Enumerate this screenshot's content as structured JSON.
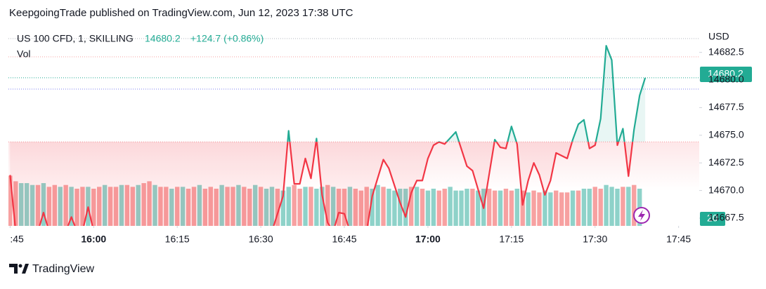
{
  "header": "KeepgoingTrade published on TradingView.com, Jun 12, 2023 17:38 UTC",
  "footer": "TradingView",
  "chart_data": {
    "type": "line",
    "symbol": "US 100 CFD, 1, SKILLING",
    "price": "14680.2",
    "change": "+124.7 (+0.86%)",
    "currency": "USD",
    "baseline": 14674.4,
    "up_color": "#22ab94",
    "down_color": "#f23645",
    "x": [
      945,
      946,
      950,
      951,
      952,
      955,
      956,
      957,
      958,
      959,
      960,
      992,
      994,
      995,
      996,
      997,
      998,
      999,
      1000,
      1001,
      1002,
      1003,
      1004,
      1005,
      1006,
      1009,
      1010,
      1012,
      1013,
      1015,
      1016,
      1017,
      1018,
      1019,
      1020,
      1021,
      1022,
      1023,
      1025,
      1027,
      1028,
      1029,
      1030,
      1032,
      1033,
      1034,
      1035,
      1036,
      1037,
      1038,
      1039,
      1040,
      1041,
      1042,
      1043,
      1045,
      1046,
      1047,
      1048,
      1049,
      1050,
      1051,
      1052,
      1053,
      1054,
      1055,
      1056,
      1057,
      1058,
      1059
    ],
    "values": [
      14671.4,
      14666.3,
      14666.3,
      14668.0,
      14666.3,
      14666.3,
      14667.6,
      14666.3,
      14666.3,
      14668.5,
      14666.3,
      14666.3,
      14669.5,
      14675.4,
      14670.6,
      14670.6,
      14672.9,
      14671.1,
      14674.7,
      14669.6,
      14667.1,
      14666.3,
      14668.0,
      14667.9,
      14666.3,
      14666.3,
      14669.5,
      14672.8,
      14672.0,
      14668.9,
      14667.6,
      14669.8,
      14670.9,
      14670.9,
      14672.9,
      14674.1,
      14674.4,
      14674.2,
      14675.3,
      14672.2,
      14671.8,
      14670.1,
      14668.4,
      14674.6,
      14673.9,
      14673.8,
      14675.8,
      14674.2,
      14668.7,
      14670.9,
      14672.5,
      14671.4,
      14669.6,
      14670.9,
      14673.4,
      14672.9,
      14674.6,
      14676.0,
      14676.4,
      14673.8,
      14674.1,
      14676.5,
      14683.1,
      14681.8,
      14674.1,
      14675.6,
      14671.3,
      14675.5,
      14678.6,
      14680.2
    ],
    "xlim": [
      944.7,
      1068.7
    ],
    "ylim": [
      14666.8,
      14684.7
    ],
    "xticks": [
      {
        "value": 945,
        "label": ":45"
      },
      {
        "value": 960,
        "label": "16:00"
      },
      {
        "value": 975,
        "label": "16:15"
      },
      {
        "value": 990,
        "label": "16:30"
      },
      {
        "value": 1005,
        "label": "16:45"
      },
      {
        "value": 1020,
        "label": "17:00"
      },
      {
        "value": 1035,
        "label": "17:15"
      },
      {
        "value": 1050,
        "label": "17:30"
      },
      {
        "value": 1065,
        "label": "17:45"
      }
    ],
    "yticks": [
      {
        "value": 14667.5,
        "label": "14667.5"
      },
      {
        "value": 14670,
        "label": "14670.0"
      },
      {
        "value": 14672.5,
        "label": "14672.5"
      },
      {
        "value": 14675,
        "label": "14675.0"
      },
      {
        "value": 14677.5,
        "label": "14677.5"
      },
      {
        "value": 14680,
        "label": "14680.0"
      },
      {
        "value": 14682.5,
        "label": "14682.5"
      }
    ],
    "volume": {
      "name": "Vol",
      "start": 945,
      "values": [
        27,
        24,
        23,
        23,
        22,
        22,
        23,
        21,
        22,
        21,
        22,
        21,
        20,
        21,
        21,
        20,
        21,
        22,
        21,
        21,
        22,
        22,
        21,
        22,
        23,
        24,
        22,
        21,
        21,
        20,
        21,
        21,
        20,
        21,
        22,
        20,
        21,
        20,
        22,
        21,
        21,
        22,
        21,
        20,
        22,
        21,
        20,
        21,
        20,
        19,
        21,
        22,
        20,
        21,
        21,
        20,
        21,
        22,
        21,
        20,
        20,
        21,
        20,
        19,
        21,
        20,
        22,
        21,
        20,
        19,
        20,
        20,
        21,
        21,
        20,
        19,
        20,
        19,
        20,
        21,
        19,
        19,
        20,
        20,
        19,
        20,
        20,
        19,
        19,
        20,
        19,
        20,
        19,
        18,
        19,
        18,
        19,
        18,
        19,
        18,
        18,
        19,
        19,
        20,
        20,
        21,
        20,
        22,
        21,
        20,
        21,
        21,
        22,
        20
      ],
      "colors": [
        "#f7a1a1",
        "#f7a1a1",
        "#8ed2c9",
        "#8ed2c9",
        "#8ed2c9",
        "#f7a1a1",
        "#8ed2c9",
        "#f7a1a1",
        "#f7a1a1",
        "#8ed2c9",
        "#f7a1a1",
        "#8ed2c9",
        "#f7a1a1",
        "#f7a1a1",
        "#8ed2c9",
        "#f7a1a1",
        "#f7a1a1",
        "#8ed2c9",
        "#f7a1a1",
        "#f7a1a1",
        "#8ed2c9",
        "#f7a1a1",
        "#f7a1a1",
        "#8ed2c9",
        "#f7a1a1",
        "#f7a1a1",
        "#8ed2c9",
        "#f7a1a1",
        "#f7a1a1",
        "#8ed2c9",
        "#f7a1a1",
        "#8ed2c9",
        "#f7a1a1",
        "#f7a1a1",
        "#8ed2c9",
        "#f7a1a1",
        "#f7a1a1",
        "#f7a1a1",
        "#8ed2c9",
        "#f7a1a1",
        "#f7a1a1",
        "#8ed2c9",
        "#f7a1a1",
        "#f7a1a1",
        "#8ed2c9",
        "#f7a1a1",
        "#8ed2c9",
        "#8ed2c9",
        "#f7a1a1",
        "#8ed2c9",
        "#8ed2c9",
        "#f7a1a1",
        "#f7a1a1",
        "#8ed2c9",
        "#f7a1a1",
        "#8ed2c9",
        "#8ed2c9",
        "#f7a1a1",
        "#8ed2c9",
        "#f7a1a1",
        "#f7a1a1",
        "#8ed2c9",
        "#f7a1a1",
        "#f7a1a1",
        "#f7a1a1",
        "#8ed2c9",
        "#8ed2c9",
        "#f7a1a1",
        "#8ed2c9",
        "#8ed2c9",
        "#8ed2c9",
        "#8ed2c9",
        "#f7a1a1",
        "#8ed2c9",
        "#f7a1a1",
        "#8ed2c9",
        "#8ed2c9",
        "#f7a1a1",
        "#f7a1a1",
        "#8ed2c9",
        "#8ed2c9",
        "#8ed2c9",
        "#8ed2c9",
        "#f7a1a1",
        "#8ed2c9",
        "#8ed2c9",
        "#f7a1a1",
        "#f7a1a1",
        "#8ed2c9",
        "#f7a1a1",
        "#f7a1a1",
        "#8ed2c9",
        "#f7a1a1",
        "#8ed2c9",
        "#f7a1a1",
        "#f7a1a1",
        "#8ed2c9",
        "#8ed2c9",
        "#f7a1a1",
        "#f7a1a1",
        "#f7a1a1",
        "#8ed2c9",
        "#f7a1a1",
        "#8ed2c9",
        "#8ed2c9",
        "#f7a1a1",
        "#f7a1a1",
        "#8ed2c9",
        "#8ed2c9",
        "#8ed2c9",
        "#f7a1a1",
        "#8ed2c9",
        "#f7a1a1",
        "#8ed2c9"
      ]
    }
  }
}
